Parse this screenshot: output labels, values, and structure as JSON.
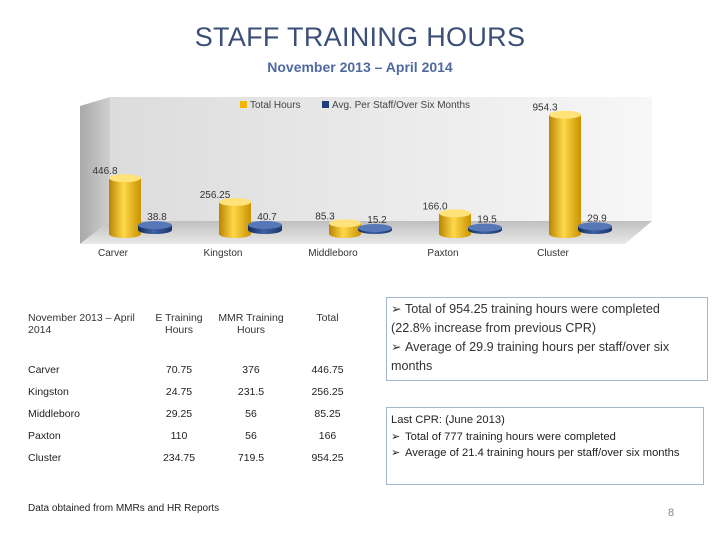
{
  "title": "STAFF TRAINING HOURS",
  "subtitle": "November 2013 – April 2014",
  "chart_data": {
    "type": "bar",
    "categories": [
      "Carver",
      "Kingston",
      "Middleboro",
      "Paxton",
      "Cluster"
    ],
    "series": [
      {
        "name": "Total Hours",
        "values": [
          446.8,
          256.25,
          85.3,
          166.0,
          954.3
        ],
        "labels": [
          "446.8",
          "256.25",
          "85.3",
          "166.0",
          "954.3"
        ],
        "color": "#f2b600"
      },
      {
        "name": "Avg. Per Staff/Over Six Months",
        "values": [
          38.8,
          40.7,
          15.2,
          19.5,
          29.9
        ],
        "labels": [
          "38.8",
          "40.7",
          "15.2",
          "19.5",
          "29.9"
        ],
        "color": "#1f3f7a"
      }
    ],
    "ylim": [
      0,
      1000
    ],
    "legend": "top",
    "grid": false
  },
  "table": {
    "headers": [
      "November 2013 – April 2014",
      "E Training Hours",
      "MMR Training Hours",
      "Total"
    ],
    "rows": [
      [
        "Carver",
        "70.75",
        "376",
        "446.75"
      ],
      [
        "Kingston",
        "24.75",
        "231.5",
        "256.25"
      ],
      [
        "Middleboro",
        "29.25",
        "56",
        "85.25"
      ],
      [
        "Paxton",
        "110",
        "56",
        "166"
      ],
      [
        "Cluster",
        "234.75",
        "719.5",
        "954.25"
      ]
    ]
  },
  "summary": {
    "bullet1": "Total of 954.25 training hours were completed (22.8% increase from previous CPR)",
    "bullet2": "Average of 29.9 training hours per staff/over six months"
  },
  "last_cpr": {
    "heading": "Last CPR: (June 2013)",
    "bullet1": "Total of 777 training hours were completed",
    "bullet2": "Average of 21.4 training hours per staff/over six months"
  },
  "bullet_glyph": "➢",
  "source_note": "Data obtained from MMRs and HR Reports",
  "page_number": "8"
}
